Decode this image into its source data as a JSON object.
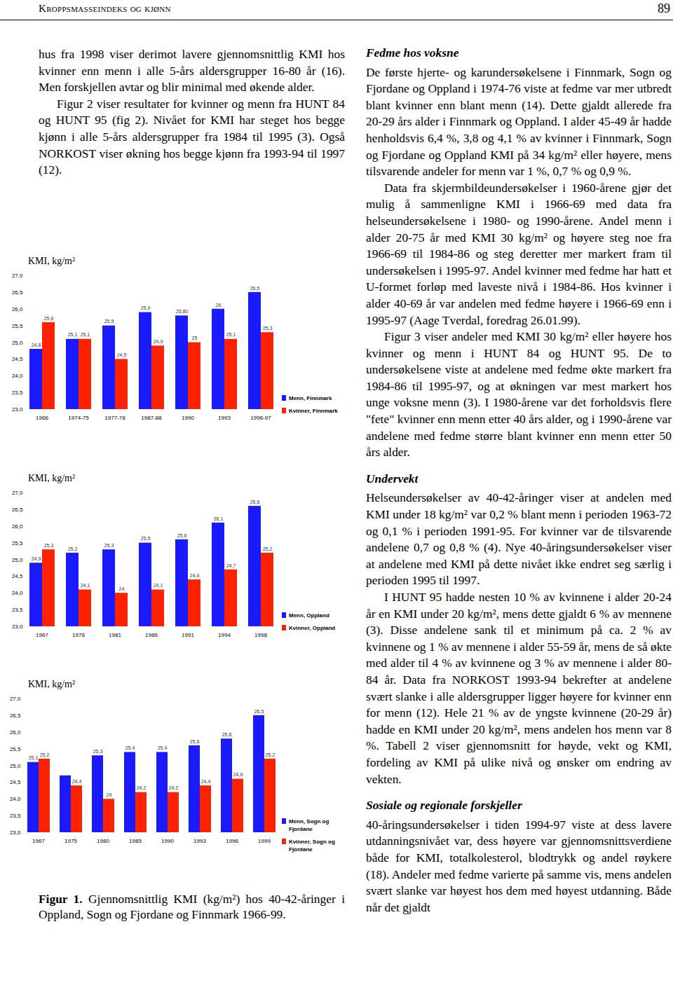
{
  "header": {
    "running_title": "Kroppsmasseindeks og kjønn",
    "page_number": "89"
  },
  "left_column": {
    "paragraphs": [
      "hus fra 1998 viser derimot lavere gjennomsnittlig KMI hos kvinner enn menn i alle 5-års aldersgrupper 16-80 år (16). Men forskjellen avtar og blir minimal med økende alder.",
      "Figur 2 viser resultater for kvinner og menn fra HUNT 84 og HUNT 95 (fig 2). Nivået for KMI har steget hos begge kjønn i alle 5-års aldersgrupper fra 1984 til 1995 (3). Også NORKOST viser økning hos begge kjønn fra 1993-94 til 1997 (12)."
    ]
  },
  "figure": {
    "caption_label": "Figur 1.",
    "caption": "Gjennomsnittlig KMI (kg/m²) hos 40-42-åringer i Oppland, Sogn og Fjordane og Finnmark 1966-99."
  },
  "right_column": {
    "sections": [
      {
        "heading": "Fedme hos voksne",
        "paragraphs": [
          "De første hjerte- og karundersøkelsene i Finnmark, Sogn og Fjordane og Oppland i 1974-76 viste at fedme var mer utbredt blant kvinner enn blant menn (14). Dette gjaldt allerede fra 20-29 års alder i Finnmark og Oppland. I alder 45-49 år hadde henholdsvis 6,4 %, 3,8 og 4,1 % av kvinner i Finnmark, Sogn og Fjordane og Oppland KMI på 34 kg/m² eller høyere, mens tilsvarende andeler for menn var 1 %, 0,7 % og 0,9 %.",
          "Data fra skjermbildeundersøkelser i 1960-årene gjør det mulig å sammenligne KMI i 1966-69 med data fra helseundersøkelsene i 1980- og 1990-årene. Andel menn i alder 20-75 år med KMI 30 kg/m² og høyere steg noe fra 1966-69 til 1984-86 og steg deretter mer markert fram til undersøkelsen i 1995-97. Andel kvinner med fedme har hatt et U-formet forløp med laveste nivå i 1984-86. Hos kvinner i alder 40-69 år var andelen med fedme høyere i 1966-69 enn i 1995-97 (Aage Tverdal, foredrag 26.01.99).",
          "Figur 3 viser andeler med KMI 30 kg/m² eller høyere hos kvinner og menn i HUNT 84 og HUNT 95. De to undersøkelsene viste at andelene med fedme økte markert fra 1984-86 til 1995-97, og at økningen var mest markert hos unge voksne menn (3). I 1980-årene var det forholdsvis flere \"fete\" kvinner enn menn etter 40 års alder, og i 1990-årene var andelene med fedme større blant kvinner enn menn etter 50 års alder."
        ]
      },
      {
        "heading": "Undervekt",
        "paragraphs": [
          "Helseundersøkelser av 40-42-åringer viser at andelen med KMI under 18 kg/m² var 0,2 % blant menn i perioden 1963-72 og 0,1 % i perioden 1991-95. For kvinner var de tilsvarende andelene 0,7 og 0,8 % (4). Nye 40-åringsundersøkelser viser at andelene med KMI på dette nivået ikke endret seg særlig i perioden 1995 til 1997.",
          "I HUNT 95 hadde nesten 10 % av kvinnene i alder 20-24 år en KMI under 20 kg/m², mens dette gjaldt 6 % av mennene (3). Disse andelene sank til et minimum på ca. 2 % av kvinnene og 1 % av mennene i alder 55-59 år, mens de så økte med alder til 4 % av kvinnene og 3 % av mennene i alder 80-84 år. Data fra NORKOST 1993-94 bekrefter at andelene svært slanke i alle aldersgrupper ligger høyere for kvinner enn for menn (12). Hele 21 % av de yngste kvinnene (20-29 år) hadde en KMI under 20 kg/m², mens andelen hos menn var 8 %. Tabell 2 viser gjennomsnitt for høyde, vekt og KMI, fordeling av KMI på ulike nivå og ønsker om endring av vekten."
        ]
      },
      {
        "heading": "Sosiale og regionale forskjeller",
        "paragraphs": [
          "40-åringsundersøkelser i tiden 1994-97 viste at dess lavere utdanningsnivået var, dess høyere var gjennomsnittsverdiene både for KMI, totalkolesterol, blodtrykk og andel røykere (18). Andeler med fedme varierte på samme vis, mens andelen svært slanke var høyest hos dem med høyest utdanning. Både når det gjaldt"
        ]
      }
    ]
  },
  "chart_data": [
    {
      "type": "bar",
      "title": "KMI, kg/m²",
      "categories": [
        "1966",
        "1974-75",
        "1977-78",
        "1987-88",
        "1990",
        "1993",
        "1996-97"
      ],
      "series": [
        {
          "name": "Menn, Finnmark",
          "color": "#1a1aff",
          "values": [
            24.8,
            25.1,
            25.5,
            25.9,
            25.8,
            26,
            26.5
          ],
          "value_labels": [
            "24,8",
            "25,1",
            "25,5",
            "25,9",
            "25,80",
            "26",
            "26,5"
          ]
        },
        {
          "name": "Kvinner, Finnmark",
          "color": "#ff2200",
          "values": [
            25.6,
            25.1,
            24.5,
            24.9,
            25,
            25.1,
            25.3
          ],
          "value_labels": [
            "25,6",
            "25,1",
            "24,5",
            "24,9",
            "25",
            "25,1",
            "25,3"
          ]
        }
      ],
      "ylim": [
        23,
        27
      ],
      "yticks": [
        {
          "value": 23,
          "label": "23,0"
        },
        {
          "value": 23.5,
          "label": "23,5"
        },
        {
          "value": 24,
          "label": "24,0"
        },
        {
          "value": 24.5,
          "label": "24,5"
        },
        {
          "value": 25,
          "label": "25,0"
        },
        {
          "value": 25.5,
          "label": "25,5"
        },
        {
          "value": 26,
          "label": "26,0"
        },
        {
          "value": 26.5,
          "label": "26,5"
        },
        {
          "value": 27,
          "label": "27,0"
        }
      ],
      "grid": false,
      "legend": "right",
      "data_labels": true
    },
    {
      "type": "bar",
      "title": "KMI, kg/m²",
      "categories": [
        "1967",
        "1976",
        "1981",
        "1986",
        "1991",
        "1994",
        "1998"
      ],
      "series": [
        {
          "name": "Menn, Oppland",
          "color": "#1a1aff",
          "values": [
            24.9,
            25.2,
            25.3,
            25.5,
            25.6,
            26.1,
            26.6
          ],
          "value_labels": [
            "24,9",
            "25,2",
            "25,3",
            "25,5",
            "25,6",
            "26,1",
            "26,6"
          ]
        },
        {
          "name": "Kvinner, Oppland",
          "color": "#ff2200",
          "values": [
            25.3,
            24.1,
            24,
            24.1,
            24.4,
            24.7,
            25.2
          ],
          "value_labels": [
            "25,3",
            "24,1",
            "24",
            "24,1",
            "24,4",
            "24,7",
            "25,2"
          ]
        }
      ],
      "ylim": [
        23,
        27
      ],
      "yticks": [
        {
          "value": 23,
          "label": "23,0"
        },
        {
          "value": 23.5,
          "label": "23,5"
        },
        {
          "value": 24,
          "label": "24,0"
        },
        {
          "value": 24.5,
          "label": "24,5"
        },
        {
          "value": 25,
          "label": "25,0"
        },
        {
          "value": 25.5,
          "label": "25,5"
        },
        {
          "value": 26,
          "label": "26,0"
        },
        {
          "value": 26.5,
          "label": "26,5"
        },
        {
          "value": 27,
          "label": "27,0"
        }
      ],
      "grid": false,
      "legend": "right",
      "data_labels": true
    },
    {
      "type": "bar",
      "title": "KMI, kg/m²",
      "categories": [
        "1967",
        "1975",
        "1980",
        "1985",
        "1990",
        "1993",
        "1996",
        "1999"
      ],
      "series": [
        {
          "name": "Menn, Sogn og Fjordane",
          "color": "#1a1aff",
          "values": [
            25.1,
            24.7,
            25.3,
            25.4,
            25.4,
            25.6,
            25.8,
            26.5
          ],
          "value_labels": [
            "25,1",
            null,
            "25,3",
            "25,4",
            "25,4",
            "25,6",
            "25,8",
            "26,5"
          ]
        },
        {
          "name": "Kvinner, Sogn og Fjordane",
          "color": "#ff2200",
          "values": [
            25.2,
            24.4,
            24,
            24.2,
            24.2,
            24.4,
            24.6,
            25.2
          ],
          "value_labels": [
            "25,2",
            "24,4",
            "24",
            "24,2",
            "24,2",
            "24,4",
            "24,6",
            "25,2"
          ]
        }
      ],
      "ylim": [
        23,
        27
      ],
      "yticks": [
        {
          "value": 23,
          "label": "23,0"
        },
        {
          "value": 23.5,
          "label": "23,5"
        },
        {
          "value": 24,
          "label": "24,0"
        },
        {
          "value": 24.5,
          "label": "24,5"
        },
        {
          "value": 25,
          "label": "25,0"
        },
        {
          "value": 25.5,
          "label": "25,5"
        },
        {
          "value": 26,
          "label": "26,0"
        },
        {
          "value": 26.5,
          "label": "26,5"
        },
        {
          "value": 27,
          "label": "27,0"
        }
      ],
      "grid": false,
      "legend": "right",
      "data_labels": true
    }
  ]
}
